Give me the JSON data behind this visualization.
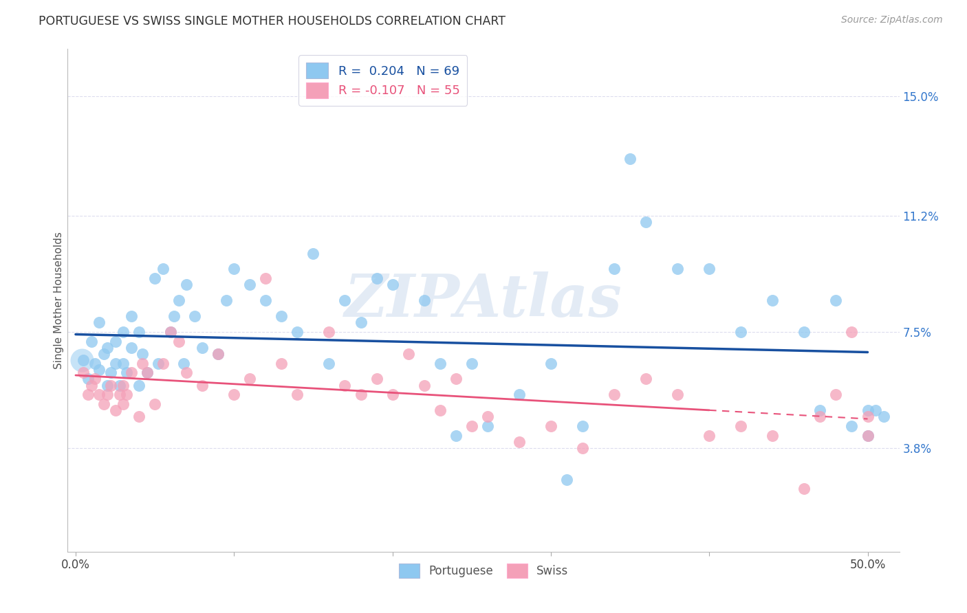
{
  "title": "PORTUGUESE VS SWISS SINGLE MOTHER HOUSEHOLDS CORRELATION CHART",
  "source": "Source: ZipAtlas.com",
  "ylabel": "Single Mother Households",
  "xlim": [
    -0.005,
    0.52
  ],
  "ylim": [
    0.005,
    0.165
  ],
  "xticks": [
    0.0,
    0.1,
    0.2,
    0.3,
    0.4,
    0.5
  ],
  "xticklabels": [
    "0.0%",
    "",
    "",
    "",
    "",
    "50.0%"
  ],
  "ytick_positions": [
    0.038,
    0.075,
    0.112,
    0.15
  ],
  "ytick_labels": [
    "3.8%",
    "7.5%",
    "11.2%",
    "15.0%"
  ],
  "R_portuguese": 0.204,
  "N_portuguese": 69,
  "R_swiss": -0.107,
  "N_swiss": 55,
  "color_portuguese": "#8EC8F0",
  "color_swiss": "#F4A0B8",
  "line_color_portuguese": "#1850A0",
  "line_color_swiss": "#E8527A",
  "portuguese_x": [
    0.005,
    0.008,
    0.01,
    0.012,
    0.015,
    0.015,
    0.018,
    0.02,
    0.02,
    0.022,
    0.025,
    0.025,
    0.028,
    0.03,
    0.03,
    0.032,
    0.035,
    0.035,
    0.04,
    0.04,
    0.042,
    0.045,
    0.05,
    0.052,
    0.055,
    0.06,
    0.062,
    0.065,
    0.068,
    0.07,
    0.075,
    0.08,
    0.09,
    0.095,
    0.1,
    0.11,
    0.12,
    0.13,
    0.14,
    0.15,
    0.16,
    0.17,
    0.18,
    0.19,
    0.2,
    0.22,
    0.23,
    0.24,
    0.25,
    0.26,
    0.28,
    0.3,
    0.31,
    0.32,
    0.34,
    0.35,
    0.36,
    0.38,
    0.4,
    0.42,
    0.44,
    0.46,
    0.47,
    0.48,
    0.49,
    0.5,
    0.5,
    0.505,
    0.51
  ],
  "portuguese_y": [
    0.066,
    0.06,
    0.072,
    0.065,
    0.078,
    0.063,
    0.068,
    0.058,
    0.07,
    0.062,
    0.072,
    0.065,
    0.058,
    0.065,
    0.075,
    0.062,
    0.08,
    0.07,
    0.075,
    0.058,
    0.068,
    0.062,
    0.092,
    0.065,
    0.095,
    0.075,
    0.08,
    0.085,
    0.065,
    0.09,
    0.08,
    0.07,
    0.068,
    0.085,
    0.095,
    0.09,
    0.085,
    0.08,
    0.075,
    0.1,
    0.065,
    0.085,
    0.078,
    0.092,
    0.09,
    0.085,
    0.065,
    0.042,
    0.065,
    0.045,
    0.055,
    0.065,
    0.028,
    0.045,
    0.095,
    0.13,
    0.11,
    0.095,
    0.095,
    0.075,
    0.085,
    0.075,
    0.05,
    0.085,
    0.045,
    0.05,
    0.042,
    0.05,
    0.048
  ],
  "swiss_x": [
    0.005,
    0.008,
    0.01,
    0.012,
    0.015,
    0.018,
    0.02,
    0.022,
    0.025,
    0.028,
    0.03,
    0.03,
    0.032,
    0.035,
    0.04,
    0.042,
    0.045,
    0.05,
    0.055,
    0.06,
    0.065,
    0.07,
    0.08,
    0.09,
    0.1,
    0.11,
    0.12,
    0.13,
    0.14,
    0.16,
    0.17,
    0.18,
    0.19,
    0.2,
    0.21,
    0.22,
    0.23,
    0.24,
    0.25,
    0.26,
    0.28,
    0.3,
    0.32,
    0.34,
    0.36,
    0.38,
    0.4,
    0.42,
    0.44,
    0.46,
    0.47,
    0.48,
    0.49,
    0.5,
    0.5
  ],
  "swiss_y": [
    0.062,
    0.055,
    0.058,
    0.06,
    0.055,
    0.052,
    0.055,
    0.058,
    0.05,
    0.055,
    0.052,
    0.058,
    0.055,
    0.062,
    0.048,
    0.065,
    0.062,
    0.052,
    0.065,
    0.075,
    0.072,
    0.062,
    0.058,
    0.068,
    0.055,
    0.06,
    0.092,
    0.065,
    0.055,
    0.075,
    0.058,
    0.055,
    0.06,
    0.055,
    0.068,
    0.058,
    0.05,
    0.06,
    0.045,
    0.048,
    0.04,
    0.045,
    0.038,
    0.055,
    0.06,
    0.055,
    0.042,
    0.045,
    0.042,
    0.025,
    0.048,
    0.055,
    0.075,
    0.048,
    0.042
  ],
  "background_color": "#FFFFFF",
  "grid_color": "#DDDDEE",
  "watermark": "ZIPAtlas",
  "watermark_color": "#C8D8EC",
  "legend_text_portuguese": "R =  0.204   N = 69",
  "legend_text_swiss": "R = -0.107   N = 55",
  "legend_portuguese_label": "Portuguese",
  "legend_swiss_label": "Swiss"
}
